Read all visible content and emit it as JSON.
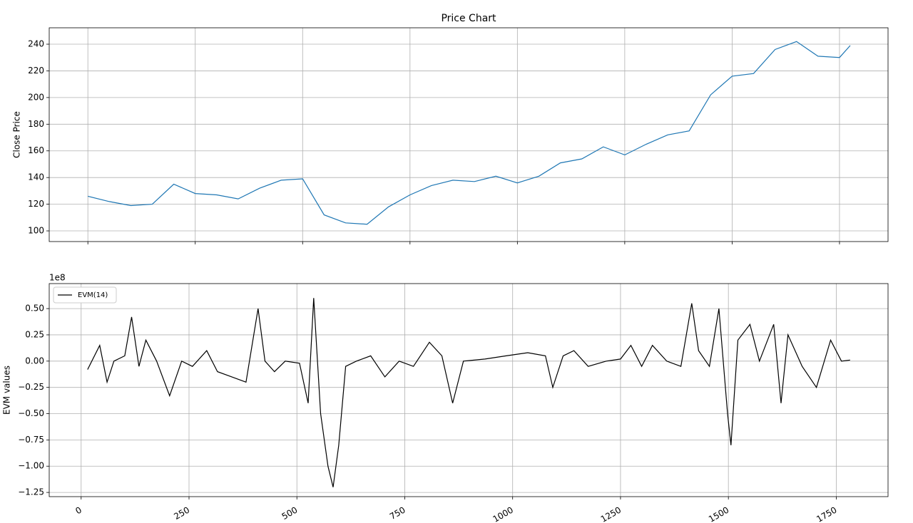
{
  "chart_data": [
    {
      "type": "line",
      "title": "Price Chart",
      "y_label": "Close Price",
      "x": [
        0,
        50,
        100,
        150,
        200,
        250,
        300,
        350,
        400,
        450,
        500,
        550,
        600,
        650,
        700,
        750,
        800,
        850,
        900,
        950,
        1000,
        1050,
        1100,
        1150,
        1200,
        1250,
        1300,
        1350,
        1400,
        1450,
        1500,
        1550,
        1600,
        1650,
        1700,
        1750,
        1775
      ],
      "series": [
        {
          "color": "#1f77b4",
          "values": [
            126,
            122,
            119,
            120,
            135,
            128,
            127,
            124,
            132,
            138,
            139,
            112,
            106,
            105,
            118,
            127,
            134,
            138,
            137,
            141,
            136,
            141,
            151,
            154,
            163,
            157,
            165,
            172,
            175,
            202,
            216,
            218,
            236,
            242,
            231,
            230,
            239
          ]
        }
      ],
      "xlim": [
        -90,
        1863
      ],
      "ylim": [
        92,
        252.3
      ],
      "xticks": [
        0,
        250,
        500,
        750,
        1000,
        1250,
        1500,
        1750
      ],
      "show_xtick_labels": false,
      "yticks": [
        100,
        120,
        140,
        160,
        180,
        200,
        220,
        240
      ],
      "grid": true
    },
    {
      "type": "line",
      "y_label": "EVM values",
      "y_offset_label": "1e8",
      "x": [
        15,
        43,
        60,
        76,
        101,
        117,
        134,
        150,
        175,
        205,
        233,
        258,
        291,
        316,
        349,
        382,
        410,
        426,
        448,
        473,
        506,
        526,
        539,
        555,
        572,
        584,
        597,
        613,
        638,
        671,
        704,
        737,
        770,
        807,
        836,
        861,
        886,
        936,
        985,
        1035,
        1076,
        1093,
        1117,
        1142,
        1175,
        1217,
        1250,
        1274,
        1299,
        1324,
        1357,
        1390,
        1415,
        1431,
        1456,
        1478,
        1498,
        1506,
        1522,
        1550,
        1572,
        1605,
        1622,
        1638,
        1671,
        1704,
        1737,
        1762,
        1782
      ],
      "series": [
        {
          "name": "EVM(14)",
          "color": "#000000",
          "values": [
            -0.08,
            0.15,
            -0.2,
            0.0,
            0.05,
            0.42,
            -0.05,
            0.2,
            0.0,
            -0.33,
            0.0,
            -0.05,
            0.1,
            -0.1,
            -0.15,
            -0.2,
            0.5,
            0.0,
            -0.1,
            0.0,
            -0.02,
            -0.4,
            0.6,
            -0.5,
            -1.0,
            -1.2,
            -0.8,
            -0.05,
            0.0,
            0.05,
            -0.15,
            0.0,
            -0.05,
            0.18,
            0.05,
            -0.4,
            0.0,
            0.02,
            0.05,
            0.08,
            0.05,
            -0.25,
            0.05,
            0.1,
            -0.05,
            0.0,
            0.02,
            0.15,
            -0.05,
            0.15,
            0.0,
            -0.05,
            0.55,
            0.1,
            -0.05,
            0.5,
            -0.5,
            -0.8,
            0.2,
            0.35,
            0.0,
            0.35,
            -0.4,
            0.25,
            -0.05,
            -0.25,
            0.2,
            0.0,
            0.01
          ]
        }
      ],
      "legend": "upper left",
      "xlim": [
        -74,
        1870
      ],
      "ylim": [
        -1.29,
        0.738
      ],
      "xticks": [
        0,
        250,
        500,
        750,
        1000,
        1250,
        1500,
        1750
      ],
      "show_xtick_labels": true,
      "xtick_rotation": 30,
      "yticks": [
        {
          "value": -1.25,
          "label": "−1.25"
        },
        {
          "value": -1.0,
          "label": "−1.00"
        },
        {
          "value": -0.75,
          "label": "−0.75"
        },
        {
          "value": -0.5,
          "label": "−0.50"
        },
        {
          "value": -0.25,
          "label": "−0.25"
        },
        {
          "value": 0,
          "label": "0.00"
        },
        {
          "value": 0.25,
          "label": "0.25"
        },
        {
          "value": 0.5,
          "label": "0.50"
        }
      ],
      "grid": true
    }
  ]
}
